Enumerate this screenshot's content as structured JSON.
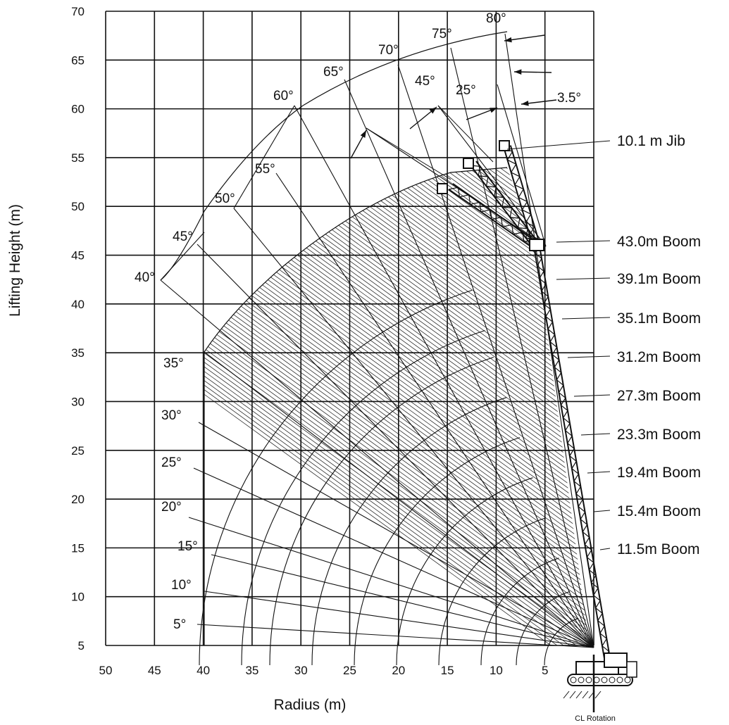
{
  "chart_data": {
    "type": "diagram",
    "title": "",
    "xlabel": "Radius (m)",
    "ylabel": "Lifting Height (m)",
    "xlim": [
      50,
      0
    ],
    "ylim": [
      5,
      70
    ],
    "x_ticks": [
      50,
      45,
      40,
      35,
      30,
      25,
      20,
      15,
      10,
      5
    ],
    "y_ticks": [
      70,
      65,
      60,
      55,
      50,
      45,
      40,
      35,
      30,
      25,
      20,
      15,
      10,
      5
    ],
    "boom_angles": [
      "5°",
      "10°",
      "15°",
      "20°",
      "25°",
      "30°",
      "35°",
      "40°",
      "45°",
      "50°",
      "55°",
      "60°",
      "65°",
      "70°",
      "75°",
      "80°"
    ],
    "jib_offsets": [
      "45°",
      "25°",
      "3.5°"
    ],
    "boom_lengths": [
      "43.0m Boom",
      "39.1m Boom",
      "35.1m Boom",
      "31.2m Boom",
      "27.3m Boom",
      "23.3m Boom",
      "19.4m Boom",
      "15.4m Boom",
      "11.5m Boom"
    ],
    "jib_label": "10.1 m Jib",
    "footer_label": "CL Rotation",
    "grid": true,
    "colors": {
      "line": "#111111",
      "background": "#ffffff"
    }
  }
}
